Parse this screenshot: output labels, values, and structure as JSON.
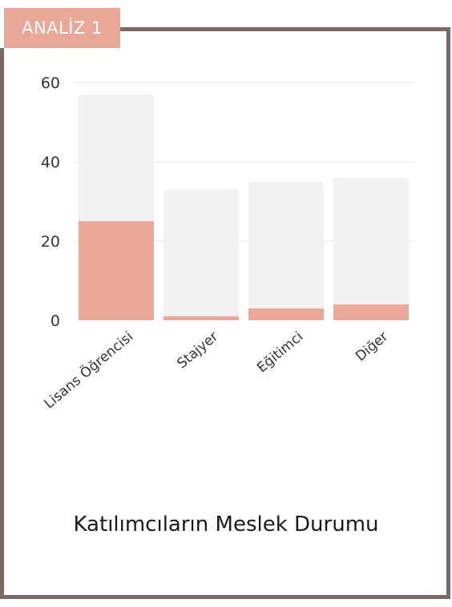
{
  "tag": {
    "label": "ANALİZ 1"
  },
  "caption": "Katılımcıların Meslek Durumu",
  "colors": {
    "highlight": "#e9a898",
    "background_bar": "#f2f2f2",
    "frame": "#7a6a66",
    "grid": "#e6e6e6"
  },
  "chart_data": {
    "type": "bar",
    "categories": [
      "Lisans Öğrencisi",
      "Stajyer",
      "Eğitimci",
      "Diğer"
    ],
    "series": [
      {
        "values": [
          57,
          33,
          35,
          36
        ]
      },
      {
        "values": [
          25,
          1,
          3,
          4
        ]
      }
    ],
    "y_ticks": [
      "0",
      "20",
      "40",
      "60"
    ],
    "ylim": [
      0,
      60
    ],
    "grid": true
  }
}
